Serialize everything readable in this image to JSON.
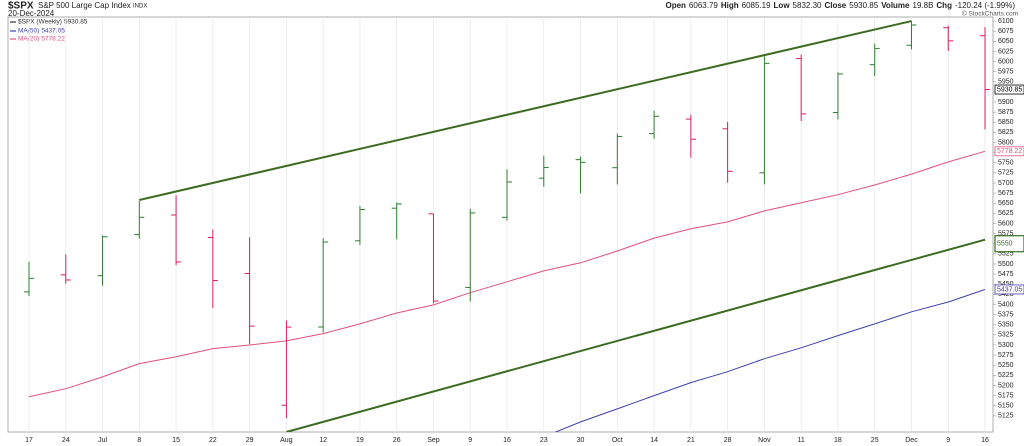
{
  "header": {
    "symbol": "$SPX",
    "name": "S&P 500 Large Cap Index",
    "exchange": "INDX",
    "date": "20-Dec-2024",
    "quote": [
      {
        "label": "Open",
        "value": "6063.79"
      },
      {
        "label": "High",
        "value": "6085.19"
      },
      {
        "label": "Low",
        "value": "5832.30"
      },
      {
        "label": "Close",
        "value": "5930.85"
      },
      {
        "label": "Volume",
        "value": "19.8B"
      },
      {
        "label": "Chg",
        "value": "-120.24 (-1.99%)"
      }
    ],
    "copyright": "© StockCharts.com"
  },
  "chart_data": {
    "type": "ohlc",
    "categories": [
      "17",
      "24",
      "Jul",
      "8",
      "15",
      "22",
      "29",
      "Aug",
      "12",
      "19",
      "26",
      "Sep",
      "9",
      "16",
      "23",
      "30",
      "Oct",
      "14",
      "21",
      "28",
      "Nov",
      "11",
      "18",
      "25",
      "Dec",
      "9",
      "16"
    ],
    "series": [
      {
        "name": "$SPX (Weekly)",
        "up_color": "#2e7d32",
        "down_color": "#d81b60",
        "open": [
          5431.11,
          5473.17,
          5471.08,
          5572.75,
          5621.0,
          5565.3,
          5476.55,
          5151.14,
          5344.39,
          5557.23,
          5637.77,
          5623.89,
          5442.07,
          5615.21,
          5711.9,
          5757.73,
          5737.8,
          5822.09,
          5857.82,
          5833.93,
          5725.15,
          6007.41,
          5874.17,
          5992.28,
          6040.11,
          6083.58,
          6063.79
        ],
        "high": [
          5505.53,
          5523.64,
          5570.33,
          5655.56,
          5669.67,
          5585.16,
          5566.16,
          5360.59,
          5563.41,
          5643.22,
          5651.62,
          5623.89,
          5636.27,
          5733.57,
          5767.37,
          5765.14,
          5822.13,
          5878.46,
          5868.58,
          5850.94,
          6012.45,
          6017.31,
          5972.9,
          6044.17,
          6099.97,
          6088.51,
          6085.19
        ],
        "low": [
          5420.83,
          5451.12,
          5446.32,
          5562.41,
          5497.04,
          5390.95,
          5302.4,
          5119.26,
          5330.54,
          5547.02,
          5560.95,
          5402.62,
          5406.96,
          5607.14,
          5690.83,
          5674.0,
          5696.29,
          5809.05,
          5762.41,
          5700.67,
          5696.51,
          5853.01,
          5856.82,
          5963.91,
          6030.15,
          6026.16,
          5832.3
        ],
        "close": [
          5464.62,
          5460.48,
          5567.19,
          5615.35,
          5505.0,
          5459.1,
          5346.56,
          5344.16,
          5554.25,
          5634.61,
          5648.4,
          5408.42,
          5626.02,
          5702.55,
          5738.17,
          5751.07,
          5815.03,
          5864.67,
          5808.12,
          5728.8,
          5995.54,
          5870.62,
          5969.34,
          6032.38,
          6090.27,
          6051.09,
          5930.85
        ]
      },
      {
        "name": "MA(50)",
        "color": "#3f3fb0",
        "values": [
          null,
          null,
          null,
          null,
          null,
          null,
          null,
          null,
          null,
          null,
          null,
          null,
          null,
          null,
          5073,
          5110,
          5142,
          5175,
          5207,
          5234,
          5266,
          5293,
          5323,
          5352,
          5382,
          5406,
          5437.05
        ]
      },
      {
        "name": "MA(20)",
        "color": "#e0507a",
        "values": [
          5172,
          5192,
          5221,
          5254,
          5271,
          5291,
          5300,
          5310,
          5328,
          5352,
          5379,
          5399,
          5429,
          5456,
          5483,
          5503,
          5532,
          5564,
          5587,
          5604,
          5631,
          5651,
          5671,
          5695,
          5722,
          5752,
          5778.22
        ]
      }
    ],
    "trendlines": [
      {
        "color": "#3d6b22",
        "x": [
          3,
          24
        ],
        "y": [
          5658,
          6100
        ]
      },
      {
        "color": "#3d6b22",
        "x": [
          7,
          26
        ],
        "y": [
          5085,
          5560
        ]
      }
    ],
    "level_marker": 5550,
    "ylim": [
      5085,
      6110
    ],
    "yticks": [
      5125,
      5150,
      5175,
      5200,
      5225,
      5250,
      5275,
      5300,
      5325,
      5350,
      5375,
      5400,
      5425,
      5450,
      5475,
      5500,
      5525,
      5550,
      5575,
      5600,
      5625,
      5650,
      5675,
      5700,
      5725,
      5750,
      5775,
      5800,
      5825,
      5850,
      5875,
      5900,
      5925,
      5950,
      5975,
      6000,
      6025,
      6050,
      6075,
      6100
    ],
    "grid": true
  }
}
